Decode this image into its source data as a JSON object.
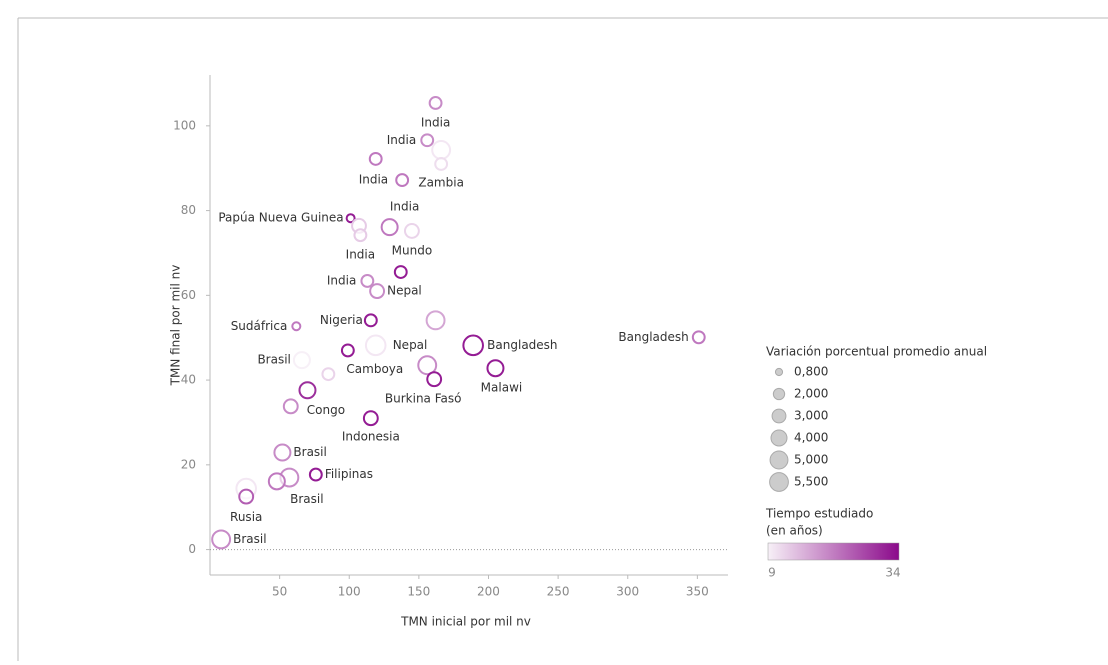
{
  "chart_data": {
    "type": "bubble",
    "x_label": "TMN inicial por mil nv",
    "y_label": "TMN final por mil nv",
    "xlim": [
      0,
      372
    ],
    "ylim": [
      -6,
      112
    ],
    "xticks": [
      50,
      100,
      150,
      200,
      250,
      300,
      350
    ],
    "yticks": [
      0,
      20,
      40,
      60,
      80,
      100
    ],
    "zero_line": true,
    "x": [
      162,
      156,
      166,
      166,
      119,
      138,
      101,
      107,
      108,
      129,
      145,
      137,
      113,
      120,
      62,
      115.5,
      162,
      189,
      351,
      119,
      99,
      66,
      156,
      205,
      161,
      85,
      70,
      58,
      115.5,
      52,
      76,
      57,
      48,
      26,
      26,
      8
    ],
    "values": [
      105.4,
      96.6,
      94.3,
      91,
      92.2,
      87.2,
      78.2,
      76.4,
      74.2,
      76.1,
      75.2,
      65.5,
      63.4,
      61,
      52.7,
      54.1,
      54.1,
      48.2,
      50.1,
      48.2,
      47,
      44.7,
      43.5,
      42.8,
      40.2,
      41.4,
      37.6,
      33.8,
      31,
      22.9,
      17.7,
      17,
      16.1,
      14.4,
      12.5,
      2.4
    ],
    "sizes": [
      2.2,
      2.2,
      5,
      2.2,
      2.2,
      2.2,
      1,
      3,
      2.2,
      4,
      3,
      2.2,
      2.2,
      3,
      1,
      2.2,
      5,
      6,
      2.2,
      6,
      2.2,
      4,
      5,
      4,
      3,
      2.2,
      4,
      3,
      3,
      4,
      2.2,
      5,
      4,
      6,
      3,
      5
    ],
    "times": [
      20,
      20,
      10,
      11,
      22,
      22,
      32,
      13,
      13,
      22,
      12,
      32,
      20,
      20,
      22,
      32,
      17,
      32,
      22,
      10,
      32,
      9,
      20,
      32,
      32,
      12,
      30,
      20,
      32,
      20,
      32,
      20,
      22,
      10,
      25,
      20
    ],
    "labels": [
      "India",
      "India",
      null,
      "Zambia",
      null,
      "India",
      "Papúa Nueva Guinea",
      null,
      "India",
      "India",
      "Mundo",
      null,
      "India",
      "Nepal",
      "Sudáfrica",
      "Nigeria",
      null,
      "Bangladesh",
      "Bangladesh",
      "Nepal",
      "Camboya",
      "Brasil",
      null,
      "Malawi",
      "Burkina Fasó",
      null,
      null,
      "Congo",
      "Indonesia",
      "Brasil",
      "Filipinas",
      null,
      "Brasil",
      null,
      "Rusia",
      "Brasil"
    ],
    "size_legend": {
      "title": "Variación porcentual promedio anual",
      "values": [
        {
          "value": 0.8,
          "label": "0,800"
        },
        {
          "value": 2,
          "label": "2,000"
        },
        {
          "value": 3,
          "label": "3,000"
        },
        {
          "value": 4,
          "label": "4,000"
        },
        {
          "value": 5,
          "label": "5,000"
        },
        {
          "value": 5.5,
          "label": "5,500"
        }
      ]
    },
    "color_legend": {
      "title": [
        "Tiempo estudiado",
        "(en años)"
      ],
      "min": 9,
      "max": 34,
      "colors": [
        "#f7f0f7",
        "#8b0a8b"
      ]
    }
  }
}
